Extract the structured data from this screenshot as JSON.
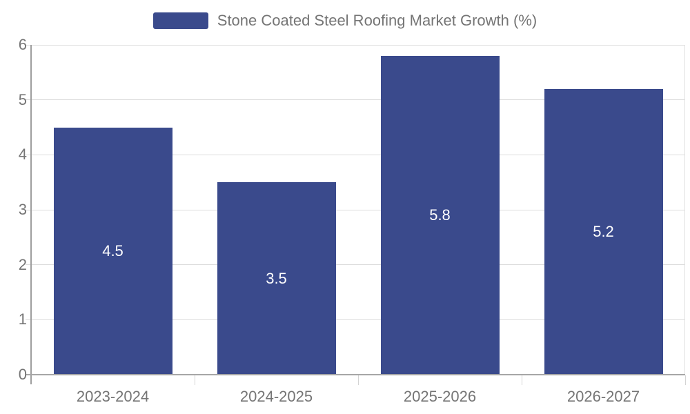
{
  "legend": {
    "label": "Stone Coated Steel Roofing Market Growth (%)"
  },
  "colors": {
    "bar": "#3A4A8C",
    "axis_text": "#757575",
    "grid_line": "#DCDCDC",
    "axis_line": "#9E9E9E",
    "data_label": "#FFFFFF",
    "background": "#FFFFFF"
  },
  "chart_data": {
    "type": "bar",
    "categories": [
      "2023-2024",
      "2024-2025",
      "2025-2026",
      "2026-2027"
    ],
    "values": [
      4.5,
      3.5,
      5.8,
      5.2
    ],
    "data_labels": [
      "4.5",
      "3.5",
      "5.8",
      "5.2"
    ],
    "series_name": "Stone Coated Steel Roofing Market Growth (%)",
    "title": "",
    "xlabel": "",
    "ylabel": "",
    "ylim": [
      0,
      6
    ],
    "yticks": [
      0,
      1,
      2,
      3,
      4,
      5,
      6
    ],
    "grid": true,
    "legend_position": "top-center",
    "bar_label_position": "inside-center"
  }
}
